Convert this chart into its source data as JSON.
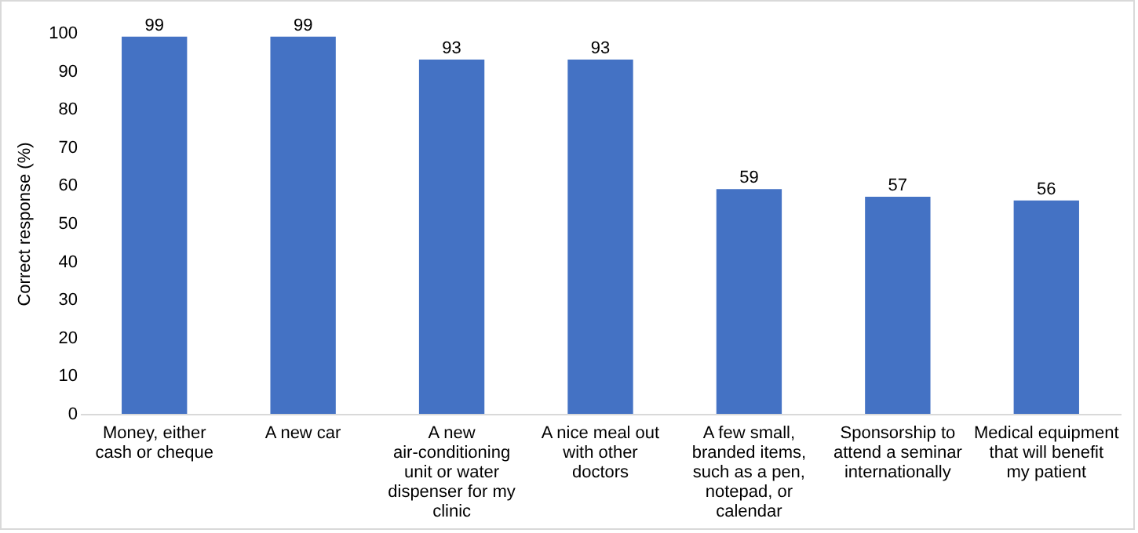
{
  "chart_data": {
    "type": "bar",
    "ylabel": "Correct response (%)",
    "categories": [
      "Money, either cash or cheque",
      "A new car",
      "A new air-conditioning unit or water dispenser for my clinic",
      "A nice meal out with other doctors",
      "A few small, branded items, such as a pen, notepad, or calendar",
      "Sponsorship to attend a seminar internationally",
      "Medical equipment that will benefit my patient"
    ],
    "values": [
      99,
      99,
      93,
      93,
      59,
      57,
      56
    ],
    "color": "#4472c4",
    "ylim": [
      0,
      100
    ],
    "yticks": [
      0,
      10,
      20,
      30,
      40,
      50,
      60,
      70,
      80,
      90,
      100
    ],
    "grid": false,
    "data_labels": true
  }
}
